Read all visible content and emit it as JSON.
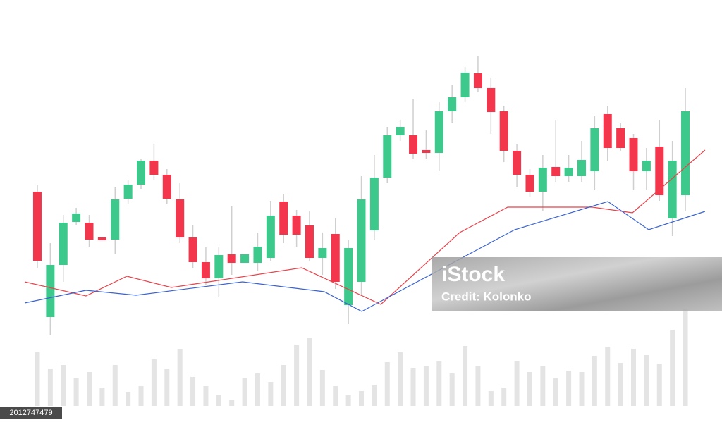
{
  "chart_data": {
    "type": "candlestick",
    "xlim": [
      -1,
      52
    ],
    "ylim": [
      0,
      600
    ],
    "y2lim": [
      0,
      140
    ],
    "up_color": "#3cc98b",
    "down_color": "#f4364c",
    "wick_color": "#cfcfcf",
    "open": [
      328,
      150,
      224,
      285,
      284,
      263,
      260,
      318,
      338,
      372,
      352,
      317,
      263,
      228,
      205,
      239,
      227,
      227,
      234,
      314,
      294,
      280,
      234,
      268,
      167,
      200,
      273,
      348,
      408,
      408,
      387,
      383,
      442,
      462,
      496,
      475,
      442,
      386,
      352,
      328,
      363,
      350,
      350,
      357,
      438,
      418,
      404,
      357,
      392,
      290,
      323
    ],
    "high": [
      338,
      255,
      295,
      305,
      295,
      263,
      335,
      345,
      375,
      395,
      360,
      340,
      280,
      250,
      250,
      308,
      239,
      270,
      315,
      325,
      302,
      300,
      270,
      290,
      260,
      350,
      380,
      420,
      430,
      460,
      415,
      455,
      480,
      505,
      520,
      490,
      450,
      395,
      360,
      380,
      430,
      380,
      400,
      435,
      450,
      425,
      410,
      390,
      430,
      400,
      475
    ],
    "low": [
      220,
      125,
      200,
      280,
      250,
      259,
      240,
      310,
      332,
      345,
      310,
      255,
      220,
      195,
      178,
      210,
      227,
      215,
      230,
      255,
      250,
      230,
      210,
      190,
      140,
      180,
      260,
      340,
      400,
      375,
      375,
      357,
      425,
      455,
      470,
      410,
      370,
      335,
      320,
      300,
      342,
      342,
      342,
      330,
      372,
      385,
      330,
      330,
      315,
      265,
      300
    ],
    "close": [
      230,
      224,
      284,
      297,
      260,
      259,
      317,
      338,
      372,
      352,
      318,
      263,
      228,
      205,
      238,
      227,
      239,
      250,
      294,
      267,
      267,
      234,
      248,
      200,
      248,
      317,
      348,
      408,
      420,
      382,
      383,
      442,
      462,
      497,
      475,
      441,
      386,
      352,
      328,
      362,
      350,
      362,
      373,
      418,
      390,
      390,
      357,
      372,
      323,
      372,
      442
    ],
    "lines": [
      {
        "color": "#e8424a",
        "x": [
          -0.98,
          3.75,
          6.91,
          10.34,
          20.4,
          26.5,
          32.59,
          36.29,
          42.82,
          45.92,
          51.52
        ],
        "values": [
          200,
          180,
          208,
          192,
          220,
          168,
          270,
          306,
          306,
          298,
          387
        ]
      },
      {
        "color": "#3b63d1",
        "x": [
          -0.98,
          3.75,
          7.62,
          15.83,
          22.14,
          25.03,
          36.83,
          44.02,
          47.17,
          51.52
        ],
        "values": [
          170,
          188,
          181,
          200,
          186,
          158,
          274,
          314,
          274,
          300
        ]
      }
    ],
    "volume": {
      "axis": "y2",
      "color": "#e4e4e4",
      "values": [
        76,
        53,
        58,
        40,
        48,
        26,
        58,
        20,
        28,
        66,
        52,
        80,
        41,
        28,
        16,
        8,
        40,
        46,
        34,
        58,
        87,
        96,
        51,
        28,
        15,
        21,
        30,
        62,
        76,
        54,
        56,
        63,
        46,
        85,
        56,
        21,
        26,
        64,
        48,
        56,
        39,
        50,
        48,
        71,
        84,
        61,
        81,
        72,
        60,
        108,
        138
      ]
    }
  },
  "watermark": {
    "brand": "iStock",
    "credit": "Credit: Kolonko"
  },
  "image_id": "2012747479"
}
